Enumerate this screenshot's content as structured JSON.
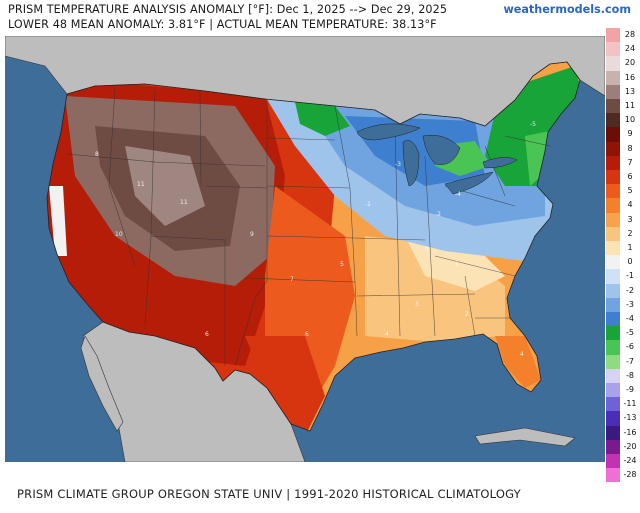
{
  "header": {
    "title": "PRISM TEMPERATURE ANALYSIS ANOMALY [°F]: Dec 1, 2025 --> Dec 29, 2025",
    "subtitle": "LOWER 48 MEAN ANOMALY: 3.81°F | ACTUAL MEAN TEMPERATURE: 38.13°F",
    "brand": "weathermodels.com"
  },
  "footer": {
    "source": "PRISM CLIMATE GROUP OREGON STATE UNIV | 1991-2020 HISTORICAL CLIMATOLOGY"
  },
  "colors": {
    "ocean": "#3f6d99",
    "land_outside": "#bdbdbd",
    "border": "#222222"
  },
  "legend": {
    "items": [
      {
        "label": "28",
        "color": "#f2a3a6"
      },
      {
        "label": "24",
        "color": "#f3c2c4"
      },
      {
        "label": "20",
        "color": "#e9dadb"
      },
      {
        "label": "16",
        "color": "#c7b2ad"
      },
      {
        "label": "13",
        "color": "#9c7f78"
      },
      {
        "label": "11",
        "color": "#6e4c44"
      },
      {
        "label": "10",
        "color": "#4f2a22"
      },
      {
        "label": "9",
        "color": "#6a0e06"
      },
      {
        "label": "8",
        "color": "#8f1406"
      },
      {
        "label": "7",
        "color": "#b51d08"
      },
      {
        "label": "6",
        "color": "#d73410"
      },
      {
        "label": "5",
        "color": "#ec5a1d"
      },
      {
        "label": "4",
        "color": "#f5802c"
      },
      {
        "label": "3",
        "color": "#f7a24d"
      },
      {
        "label": "2",
        "color": "#f9c47d"
      },
      {
        "label": "1",
        "color": "#fbe3b6"
      },
      {
        "label": "0",
        "color": "#f2f2f2"
      },
      {
        "label": "-1",
        "color": "#cfe2f5"
      },
      {
        "label": "-2",
        "color": "#9ec4ec"
      },
      {
        "label": "-3",
        "color": "#6fa4e0"
      },
      {
        "label": "-4",
        "color": "#3f7fd0"
      },
      {
        "label": "-5",
        "color": "#19a43a"
      },
      {
        "label": "-6",
        "color": "#4ac455"
      },
      {
        "label": "-7",
        "color": "#8fdc80"
      },
      {
        "label": "-8",
        "color": "#d7d2f4"
      },
      {
        "label": "-9",
        "color": "#a9a2ea"
      },
      {
        "label": "-11",
        "color": "#6f61d8"
      },
      {
        "label": "-13",
        "color": "#4a2fb6"
      },
      {
        "label": "-16",
        "color": "#3a1a7e"
      },
      {
        "label": "-20",
        "color": "#7a1a8e"
      },
      {
        "label": "-24",
        "color": "#c233b4"
      },
      {
        "label": "-28",
        "color": "#f06fd6"
      }
    ]
  },
  "map_labels": [
    {
      "text": "11"
    },
    {
      "text": "11"
    },
    {
      "text": "10"
    },
    {
      "text": "9"
    },
    {
      "text": "8"
    },
    {
      "text": "7"
    },
    {
      "text": "6"
    },
    {
      "text": "5"
    },
    {
      "text": "4"
    },
    {
      "text": "3"
    },
    {
      "text": "2"
    },
    {
      "text": "1"
    },
    {
      "text": "0"
    },
    {
      "text": "-1"
    },
    {
      "text": "-2"
    },
    {
      "text": "-3"
    },
    {
      "text": "-4"
    },
    {
      "text": "-5"
    },
    {
      "text": "6"
    },
    {
      "text": "4"
    }
  ]
}
